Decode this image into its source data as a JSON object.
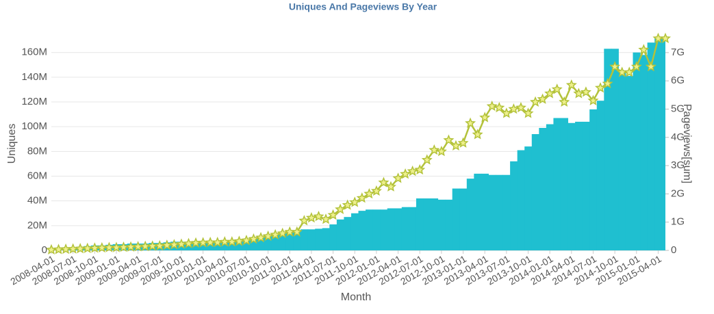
{
  "chart_data": {
    "type": "bar-line",
    "title": "Uniques And Pageviews By Year",
    "x_label": "Month",
    "y_label": "Uniques",
    "y2_label": "Pageviews[sum]",
    "categories": [
      "2008-04-01",
      null,
      null,
      "2008-07-01",
      null,
      null,
      "2008-10-01",
      null,
      null,
      "2009-01-01",
      null,
      null,
      "2009-04-01",
      null,
      null,
      "2009-07-01",
      null,
      null,
      "2009-10-01",
      null,
      null,
      "2010-01-01",
      null,
      null,
      "2010-04-01",
      null,
      null,
      "2010-07-01",
      null,
      null,
      "2010-10-01",
      null,
      null,
      "2011-01-01",
      null,
      null,
      "2011-04-01",
      null,
      null,
      "2011-07-01",
      null,
      null,
      "2011-10-01",
      null,
      null,
      "2012-01-01",
      null,
      null,
      "2012-04-01",
      null,
      null,
      "2012-07-01",
      null,
      null,
      "2012-10-01",
      null,
      null,
      "2013-01-01",
      null,
      null,
      "2013-04-01",
      null,
      null,
      "2013-07-01",
      null,
      null,
      "2013-10-01",
      null,
      null,
      "2014-01-01",
      null,
      null,
      "2014-04-01",
      null,
      null,
      "2014-07-01",
      null,
      null,
      "2014-10-01",
      null,
      null,
      "2015-01-01",
      null,
      null,
      "2015-04-01",
      null
    ],
    "series": [
      {
        "type": "bar",
        "color": "#1fbfd0",
        "values": [
          1,
          1.5,
          2,
          2.5,
          3,
          3.5,
          4,
          4,
          4.5,
          5,
          5,
          5.5,
          5.5,
          5.5,
          6,
          6,
          6.5,
          7,
          7,
          7,
          7.5,
          7.5,
          7,
          7,
          7,
          7.5,
          8,
          9,
          10,
          11,
          12,
          13,
          14,
          15,
          16,
          17,
          17,
          17.5,
          18,
          21,
          25,
          27,
          30,
          32,
          33,
          33,
          33,
          34,
          34,
          35,
          35,
          42,
          42,
          42,
          41,
          41,
          50,
          50,
          58,
          62,
          62,
          61,
          61,
          61,
          72,
          81,
          84,
          94,
          99,
          102,
          107,
          107,
          103,
          104,
          104,
          114,
          121,
          163,
          163,
          145,
          141,
          160,
          158,
          168,
          172,
          172
        ]
      },
      {
        "type": "line",
        "axis": "y2",
        "color": "#b3c23a",
        "marker_fill": "#eef08c",
        "values": [
          0.02,
          0.03,
          0.04,
          0.05,
          0.06,
          0.07,
          0.08,
          0.09,
          0.1,
          0.1,
          0.11,
          0.12,
          0.13,
          0.14,
          0.15,
          0.16,
          0.18,
          0.2,
          0.22,
          0.24,
          0.26,
          0.27,
          0.28,
          0.28,
          0.3,
          0.3,
          0.32,
          0.35,
          0.4,
          0.45,
          0.5,
          0.55,
          0.6,
          0.65,
          0.65,
          1.05,
          1.15,
          1.2,
          1.1,
          1.25,
          1.45,
          1.6,
          1.7,
          1.85,
          2.0,
          2.1,
          2.4,
          2.25,
          2.55,
          2.7,
          2.8,
          2.85,
          3.2,
          3.55,
          3.5,
          3.9,
          3.7,
          3.8,
          4.5,
          4.1,
          4.7,
          5.1,
          5.05,
          4.85,
          5.0,
          5.05,
          4.85,
          5.25,
          5.35,
          5.55,
          5.7,
          5.25,
          5.85,
          5.55,
          5.6,
          5.3,
          5.75,
          5.9,
          6.5,
          6.3,
          6.3,
          6.5,
          7.1,
          6.5,
          7.5,
          7.5
        ]
      }
    ],
    "ylim": [
      0,
      172
    ],
    "yticks": [
      0,
      {
        "value": 20,
        "label": "20M"
      },
      {
        "value": 40,
        "label": "40M"
      },
      {
        "value": 60,
        "label": "60M"
      },
      {
        "value": 80,
        "label": "80M"
      },
      {
        "value": 100,
        "label": "100M"
      },
      {
        "value": 120,
        "label": "120M"
      },
      {
        "value": 140,
        "label": "140M"
      },
      {
        "value": 160,
        "label": "160M"
      }
    ],
    "y2lim": [
      0,
      7.53
    ],
    "y2ticks": [
      0,
      {
        "value": 1,
        "label": "1G"
      },
      {
        "value": 2,
        "label": "2G"
      },
      {
        "value": 3,
        "label": "3G"
      },
      {
        "value": 4,
        "label": "4G"
      },
      {
        "value": 5,
        "label": "5G"
      },
      {
        "value": 6,
        "label": "6G"
      },
      {
        "value": 7,
        "label": "7G"
      }
    ],
    "grid": true
  }
}
